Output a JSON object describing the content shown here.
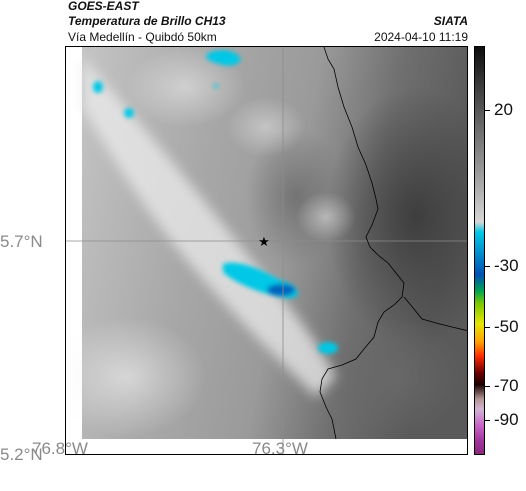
{
  "header": {
    "satellite": "GOES-EAST",
    "title": "Temperatura de Brillo CH13",
    "subtitle": "Vía Medellín - Quibdó 50km",
    "organization": "SIATA",
    "datetime": "2024-04-10 11:19"
  },
  "map": {
    "latitude_labels": [
      "5.7°N",
      "5.2°N"
    ],
    "longitude_labels": [
      "76.8°W",
      "76.3°W"
    ],
    "marker": "star-icon",
    "boundary_color": "#000000",
    "gridline_color": "#8c8c8c"
  },
  "colorbar": {
    "tick_labels": [
      "20",
      "-30",
      "-50",
      "-70",
      "-90"
    ],
    "colors": {
      "warm_black": "#0c0c0c",
      "light_gray": "#d6d6d6",
      "cyan": "#00c8e6",
      "blue": "#0050b4",
      "green": "#00a650",
      "yellow": "#e6e600",
      "orange": "#ffa000",
      "red": "#ff2800",
      "dark_red": "#6e0000",
      "magenta": "#a0329b"
    }
  }
}
